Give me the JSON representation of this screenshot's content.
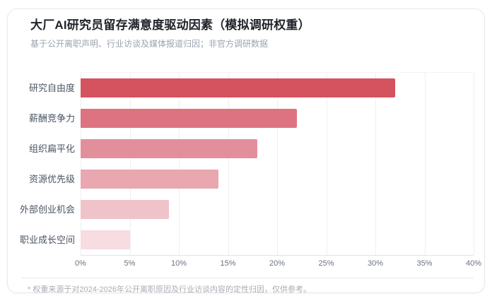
{
  "card": {
    "title": "大厂AI研究员留存满意度驱动因素（模拟调研权重）",
    "subtitle": "基于公开离职声明、行业访谈及媒体报道归因；非官方调研数据",
    "footnote": "* 权重来源于对2024-2026年公开离职原因及行业访谈内容的定性归因，仅供参考。"
  },
  "colors": {
    "card_background": "#ffffff",
    "card_border": "#e8e8e8",
    "title_text": "#1f2329",
    "subtitle_text": "#9ca3af",
    "label_text": "#4b5563",
    "tick_text": "#6b7280",
    "footnote_text": "#a8adb4",
    "axis_line": "#e3e3e3",
    "grid_line": "#efefef"
  },
  "chart_data": {
    "type": "bar",
    "orientation": "horizontal",
    "title": "大厂AI研究员留存满意度驱动因素（模拟调研权重）",
    "subtitle": "基于公开离职声明、行业访谈及媒体报道归因；非官方调研数据",
    "categories": [
      "研究自由度",
      "薪酬竞争力",
      "组织扁平化",
      "资源优先级",
      "外部创业机会",
      "职业成长空间"
    ],
    "values": [
      32,
      22,
      18,
      14,
      9,
      5
    ],
    "unit": "%",
    "xlim": [
      0,
      40
    ],
    "x_tick_step": 5,
    "tick_labels": [
      "0%",
      "5%",
      "10%",
      "15%",
      "20%",
      "25%",
      "30%",
      "35%",
      "40%"
    ],
    "bar_colors": [
      "#d5525f",
      "#dd7381",
      "#e28f9b",
      "#e9a7b0",
      "#f0c3ca",
      "#f7dce1"
    ],
    "grid": "vertical-only",
    "legend": "none",
    "xlabel": "",
    "ylabel": ""
  }
}
